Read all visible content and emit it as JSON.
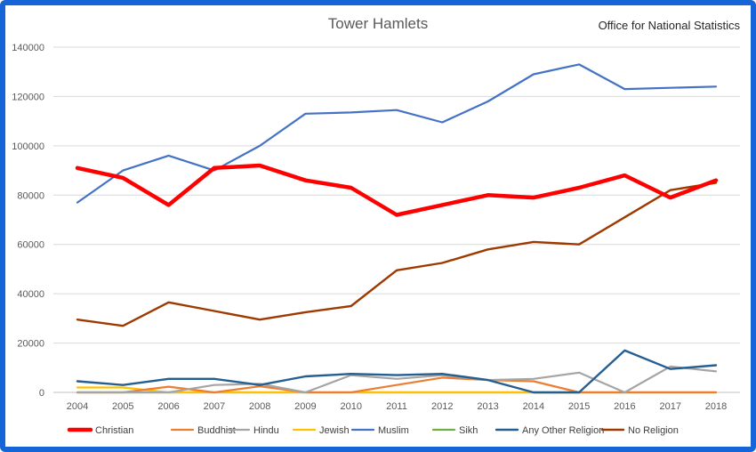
{
  "chart_data": {
    "type": "line",
    "title": "Tower Hamlets",
    "source_label": "Office for National Statistics",
    "x": [
      "2004",
      "2005",
      "2006",
      "2007",
      "2008",
      "2009",
      "2010",
      "2011",
      "2012",
      "2013",
      "2014",
      "2015",
      "2016",
      "2017",
      "2018"
    ],
    "ylim": [
      0,
      140000
    ],
    "yticks": [
      "0",
      "20000",
      "40000",
      "60000",
      "80000",
      "100000",
      "120000",
      "140000"
    ],
    "grid": "horizontal",
    "legend_position": "bottom",
    "series": [
      {
        "name": "Christian",
        "color": "#ff0000",
        "width": 4.5,
        "values": [
          91000,
          87000,
          76000,
          91000,
          92000,
          86000,
          83000,
          72000,
          76000,
          80000,
          79000,
          83000,
          88000,
          79000,
          86000
        ]
      },
      {
        "name": "Buddhist",
        "color": "#ed7d31",
        "width": 2.2,
        "values": [
          0,
          0,
          2300,
          0,
          2500,
          0,
          0,
          3000,
          6000,
          5000,
          4500,
          0,
          0,
          0,
          0
        ]
      },
      {
        "name": "Hindu",
        "color": "#a5a5a5",
        "width": 2.2,
        "values": [
          0,
          0,
          0,
          3000,
          3500,
          0,
          7000,
          5500,
          7000,
          5000,
          5500,
          8000,
          0,
          10500,
          8500
        ]
      },
      {
        "name": "Jewish",
        "color": "#ffc000",
        "width": 2.2,
        "values": [
          2000,
          2000,
          0,
          0,
          0,
          0,
          0,
          0,
          0,
          0,
          0,
          0,
          0,
          0,
          0
        ]
      },
      {
        "name": "Muslim",
        "color": "#4472c4",
        "width": 2.2,
        "values": [
          77000,
          90000,
          96000,
          90000,
          100000,
          113000,
          113500,
          114500,
          109500,
          118000,
          129000,
          133000,
          123000,
          123500,
          124000
        ]
      },
      {
        "name": "Sikh",
        "color": "#70ad47",
        "width": 2.2,
        "values": [
          0,
          0,
          0,
          0,
          0,
          0,
          0,
          0,
          0,
          0,
          0,
          0,
          0,
          0,
          0
        ]
      },
      {
        "name": "Any Other Religion",
        "color": "#255e91",
        "width": 2.4,
        "values": [
          4500,
          3000,
          5500,
          5500,
          3000,
          6500,
          7500,
          7000,
          7500,
          5000,
          0,
          0,
          17000,
          9500,
          11000
        ]
      },
      {
        "name": "No Religion",
        "color": "#9e3a00",
        "width": 2.4,
        "values": [
          29500,
          27000,
          36500,
          33000,
          29500,
          32500,
          35000,
          49500,
          52500,
          58000,
          61000,
          60000,
          71000,
          82000,
          85000
        ]
      }
    ]
  }
}
